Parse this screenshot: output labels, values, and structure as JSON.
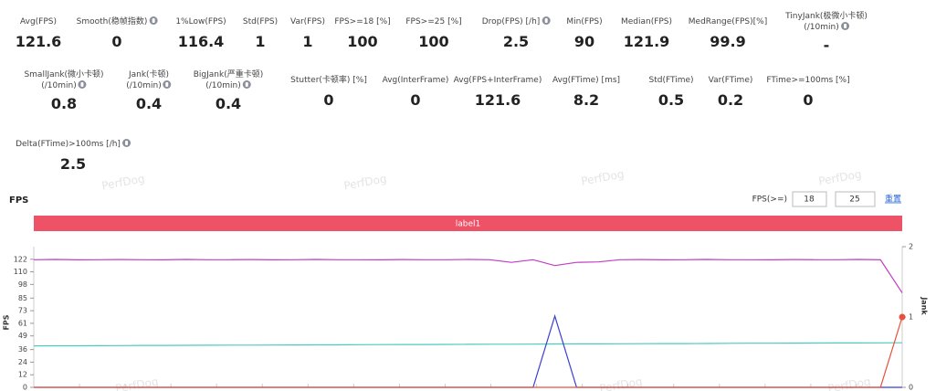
{
  "stats": [
    [
      {
        "label": "Avg(FPS)",
        "value": 121.6
      },
      {
        "label": "Smooth(稳帧指数)",
        "value": 0,
        "help": true
      },
      {
        "label": "1%Low(FPS)",
        "value": 116.4
      },
      {
        "label": "Std(FPS)",
        "value": 1
      },
      {
        "label": "Var(FPS)",
        "value": 1
      },
      {
        "label": "FPS>=18 [%]",
        "value": 100
      },
      {
        "label": "FPS>=25 [%]",
        "value": 100
      },
      {
        "label": "Drop(FPS) [/h]",
        "value": 2.5,
        "help": true
      },
      {
        "label": "Min(FPS)",
        "value": 90
      },
      {
        "label": "Median(FPS)",
        "value": 121.9
      },
      {
        "label": "MedRange(FPS)[%]",
        "value": 99.9
      },
      {
        "label": "TinyJank(极微小卡顿)\n(/10min)",
        "value": "-",
        "help": true
      }
    ],
    [
      {
        "label": "SmallJank(微小卡顿)\n(/10min)",
        "value": 0.8,
        "help": true
      },
      {
        "label": "Jank(卡顿)\n(/10min)",
        "value": 0.4,
        "help": true
      },
      {
        "label": "BigJank(严重卡顿)\n(/10min)",
        "value": 0.4,
        "help": true
      },
      {
        "label": "Stutter(卡顿率) [%]",
        "value": 0
      },
      {
        "label": "Avg(InterFrame)",
        "value": 0
      },
      {
        "label": "Avg(FPS+InterFrame)",
        "value": 121.6
      },
      {
        "label": "Avg(FTime) [ms]",
        "value": 8.2
      },
      {
        "label": "Std(FTime)",
        "value": 0.5
      },
      {
        "label": "Var(FTime)",
        "value": 0.2
      },
      {
        "label": "FTime>=100ms [%]",
        "value": 0
      }
    ],
    [
      {
        "label": "Delta(FTime)>100ms [/h]",
        "value": 2.5,
        "help": true
      }
    ]
  ],
  "watermark": "PerfDog",
  "chart_data": {
    "type": "line",
    "title": "FPS",
    "controls": {
      "filter_label": "FPS(>=)",
      "inputs": [
        18,
        25
      ],
      "reset": "重置"
    },
    "label_bar": {
      "text": "label1",
      "color": "#ee5266"
    },
    "y_label": "FPS",
    "y2_label": "Jank",
    "ylim": [
      0,
      134
    ],
    "yticks": [
      0,
      12,
      24,
      36,
      49,
      61,
      73,
      85,
      98,
      110,
      122
    ],
    "y2lim": [
      0,
      2
    ],
    "y2ticks": [
      0,
      1,
      2
    ],
    "series": [
      {
        "color": "#c23cc4",
        "values": [
          121.6,
          121.8,
          121.5,
          121.6,
          121.7,
          121.6,
          121.5,
          121.8,
          121.6,
          121.6,
          121.7,
          121.5,
          121.6,
          121.8,
          121.6,
          121.6,
          121.5,
          121.7,
          121.6,
          121.6,
          121.8,
          121.6,
          119,
          121.6,
          116,
          119,
          119.5,
          121.6,
          121.7,
          121.5,
          121.6,
          121.8,
          121.6,
          121.6,
          121.5,
          121.7,
          121.6,
          121.6,
          121.8,
          121.5,
          90
        ]
      },
      {
        "color": "#4ccac2",
        "values": [
          39.5,
          39.6,
          39.6,
          39.7,
          39.8,
          39.9,
          39.9,
          40.0,
          40.1,
          40.2,
          40.2,
          40.3,
          40.4,
          40.5,
          40.5,
          40.6,
          40.7,
          40.8,
          40.8,
          40.9,
          41.0,
          41.1,
          41.1,
          41.2,
          41.3,
          41.4,
          41.4,
          41.5,
          41.6,
          41.7,
          41.7,
          41.8,
          41.9,
          42.0,
          42.0,
          42.1,
          42.2,
          42.3,
          42.3,
          42.4,
          42.5
        ]
      },
      {
        "color": "#3b3fd4",
        "values": [
          0,
          0,
          0,
          0,
          0,
          0,
          0,
          0,
          0,
          0,
          0,
          0,
          0,
          0,
          0,
          0,
          0,
          0,
          0,
          0,
          0,
          0,
          0,
          0,
          68,
          0,
          0,
          0,
          0,
          0,
          0,
          0,
          0,
          0,
          0,
          0,
          0,
          0,
          0,
          0,
          0
        ]
      },
      {
        "color": "#e8503a",
        "axis": "y2",
        "values": [
          0,
          0,
          0,
          0,
          0,
          0,
          0,
          0,
          0,
          0,
          0,
          0,
          0,
          0,
          0,
          0,
          0,
          0,
          0,
          0,
          0,
          0,
          0,
          0,
          0,
          0,
          0,
          0,
          0,
          0,
          0,
          0,
          0,
          0,
          0,
          0,
          0,
          0,
          0,
          0,
          1
        ]
      }
    ]
  }
}
